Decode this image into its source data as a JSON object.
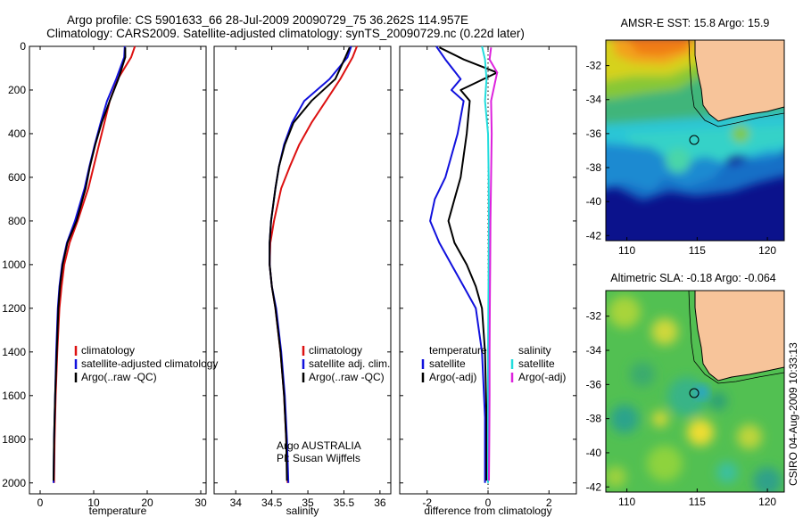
{
  "header": {
    "line1": "Argo profile: CS 5901633_66 28-Jul-2009 20090729_75 36.262S 114.957E",
    "line2": "Climatology: CARS2009. Satellite-adjusted climatology: synTS_20090729.nc (0.22d later)"
  },
  "side_label": "CSIRO 04-Aug-2009 10:33:13",
  "colors": {
    "climatology": "#dd1111",
    "satellite": "#1111dd",
    "argo": "#000000",
    "satellite_salinity": "#22dddd",
    "argo_adj_salinity": "#dd22dd",
    "land": "#f7c49a",
    "ocean_deep": "#0b128c"
  },
  "chart_data": [
    {
      "type": "line",
      "xlabel": "temperature",
      "ylabel": "",
      "xlim": [
        -2,
        31
      ],
      "ylim": [
        0,
        2050
      ],
      "xticks": [
        0,
        10,
        20,
        30
      ],
      "yticks": [
        0,
        200,
        400,
        600,
        800,
        1000,
        1200,
        1400,
        1600,
        1800,
        2000
      ],
      "legend": {
        "placement": "lower-right",
        "entries": [
          "climatology",
          "satellite-adjusted climatology",
          "Argo(..raw -QC)"
        ]
      },
      "series": [
        {
          "name": "climatology",
          "color": "#dd1111",
          "x": [
            17.7,
            17,
            14.5,
            13,
            12,
            11,
            10,
            9,
            7,
            5.5,
            4.5,
            4,
            3.6,
            3.2,
            2.9,
            2.7,
            2.6
          ],
          "y": [
            0,
            50,
            150,
            250,
            350,
            450,
            550,
            650,
            800,
            900,
            1000,
            1100,
            1200,
            1400,
            1600,
            1800,
            2000
          ]
        },
        {
          "name": "satellite-adjusted climatology",
          "color": "#1111dd",
          "x": [
            15.8,
            15.7,
            14.2,
            12.5,
            11.3,
            10.2,
            9.2,
            8.3,
            6.5,
            5,
            4.1,
            3.6,
            3.3,
            3,
            2.8,
            2.6,
            2.5
          ],
          "y": [
            0,
            50,
            150,
            250,
            350,
            450,
            550,
            650,
            800,
            900,
            1000,
            1100,
            1200,
            1400,
            1600,
            1800,
            2000
          ]
        },
        {
          "name": "Argo(..raw -QC)",
          "color": "#000000",
          "x": [
            15.9,
            15.9,
            14.6,
            13,
            11.5,
            10.3,
            9.3,
            8.5,
            6.8,
            5.1,
            4.2,
            3.7,
            3.4,
            3.1,
            2.8,
            2.6,
            2.5
          ],
          "y": [
            5,
            50,
            150,
            250,
            350,
            450,
            550,
            650,
            800,
            900,
            1000,
            1100,
            1200,
            1400,
            1600,
            1800,
            1990
          ]
        }
      ]
    },
    {
      "type": "line",
      "xlabel": "salinity",
      "xlim": [
        33.7,
        36.15
      ],
      "ylim": [
        0,
        2050
      ],
      "xticks": [
        34,
        34.5,
        35,
        35.5,
        36
      ],
      "legend": {
        "placement": "lower-right",
        "entries": [
          "climatology",
          "satellite adj. clim.",
          "Argo(..raw -QC)"
        ]
      },
      "annotations": [
        "Argo AUSTRALIA",
        "PI: Susan Wijffels"
      ],
      "series": [
        {
          "name": "climatology",
          "color": "#dd1111",
          "x": [
            35.68,
            35.62,
            35.45,
            35.25,
            35.05,
            34.88,
            34.75,
            34.63,
            34.53,
            34.48,
            34.47,
            34.5,
            34.55,
            34.62,
            34.67,
            34.7,
            34.72
          ],
          "y": [
            0,
            50,
            150,
            250,
            350,
            450,
            550,
            650,
            800,
            900,
            1000,
            1100,
            1200,
            1400,
            1600,
            1800,
            2000
          ]
        },
        {
          "name": "satellite adj. clim.",
          "color": "#1111dd",
          "x": [
            35.6,
            35.55,
            35.3,
            34.95,
            34.78,
            34.67,
            34.6,
            34.55,
            34.49,
            34.47,
            34.47,
            34.5,
            34.56,
            34.63,
            34.68,
            34.71,
            34.73
          ],
          "y": [
            0,
            50,
            150,
            250,
            350,
            450,
            550,
            650,
            800,
            900,
            1000,
            1100,
            1200,
            1400,
            1600,
            1800,
            2000
          ]
        },
        {
          "name": "Argo(..raw -QC)",
          "color": "#000000",
          "x": [
            35.58,
            35.52,
            35.38,
            35.05,
            34.8,
            34.68,
            34.6,
            34.55,
            34.49,
            34.47,
            34.47,
            34.5,
            34.55,
            34.62,
            34.67,
            34.7,
            34.71
          ],
          "y": [
            5,
            50,
            150,
            250,
            350,
            450,
            550,
            650,
            800,
            900,
            1000,
            1100,
            1200,
            1400,
            1600,
            1800,
            1990
          ]
        }
      ]
    },
    {
      "type": "line",
      "xlabel": "difference from climatology",
      "xlim": [
        -2.9,
        2.9
      ],
      "ylim": [
        0,
        2050
      ],
      "xticks": [
        -2,
        0,
        2
      ],
      "zero_line": "dotted",
      "legend": {
        "placement": "lower-center",
        "groups": [
          {
            "title": "temperature",
            "entries": [
              "satellite",
              "Argo(-adj)"
            ]
          },
          {
            "title": "salinity",
            "entries": [
              "satellite",
              "Argo(-adj)"
            ]
          }
        ]
      },
      "series": [
        {
          "name": "satellite",
          "group": "temperature",
          "color": "#1111dd",
          "x": [
            -1.7,
            -1.4,
            -0.9,
            -1.2,
            -0.8,
            -1.0,
            -1.4,
            -1.75,
            -1.9,
            -1.6,
            -1.2,
            -0.8,
            -0.4,
            -0.2,
            -0.1,
            -0.1
          ],
          "y": [
            0,
            60,
            150,
            200,
            250,
            400,
            600,
            700,
            800,
            900,
            1000,
            1100,
            1200,
            1400,
            1700,
            2000
          ]
        },
        {
          "name": "Argo(-adj)",
          "group": "temperature",
          "color": "#000000",
          "x": [
            -1.6,
            -0.8,
            0.3,
            -0.9,
            -0.6,
            -0.7,
            -0.9,
            -1.1,
            -1.3,
            -1.1,
            -0.7,
            -0.4,
            -0.2,
            -0.1,
            -0.05,
            -0.05
          ],
          "y": [
            5,
            60,
            120,
            200,
            250,
            400,
            600,
            700,
            800,
            900,
            1000,
            1100,
            1200,
            1400,
            1700,
            1990
          ]
        },
        {
          "name": "satellite",
          "group": "salinity",
          "color": "#22dddd",
          "x": [
            -0.2,
            -0.1,
            -0.05,
            -0.1,
            0,
            0.02,
            0.03,
            0.02,
            0.01,
            0.0,
            0.0,
            0.0,
            0.0
          ],
          "y": [
            0,
            60,
            150,
            250,
            400,
            600,
            800,
            1000,
            1200,
            1400,
            1600,
            1800,
            2000
          ]
        },
        {
          "name": "Argo(-adj)",
          "group": "salinity",
          "color": "#dd22dd",
          "x": [
            0.1,
            0.05,
            0.3,
            0.1,
            0.12,
            0.1,
            0.08,
            0.07,
            0.06,
            0.05,
            0.05,
            0.04,
            0.03
          ],
          "y": [
            5,
            60,
            120,
            250,
            400,
            600,
            800,
            1000,
            1200,
            1400,
            1600,
            1800,
            1990
          ]
        }
      ]
    },
    {
      "type": "heatmap",
      "title": "AMSR-E SST: 15.8 Argo: 15.9",
      "xlim": [
        108.5,
        121.2
      ],
      "ylim": [
        -42.3,
        -30.5
      ],
      "xticks": [
        110,
        115,
        120
      ],
      "yticks": [
        -32,
        -34,
        -36,
        -38,
        -40,
        -42
      ],
      "argo_position": {
        "lon": 114.957,
        "lat": -36.262
      }
    },
    {
      "type": "heatmap",
      "title": "Altimetric SLA: -0.18 Argo: -0.064",
      "xlim": [
        108.5,
        121.2
      ],
      "ylim": [
        -42.3,
        -30.5
      ],
      "xticks": [
        110,
        115,
        120
      ],
      "yticks": [
        -32,
        -34,
        -36,
        -38,
        -40,
        -42
      ],
      "argo_position": {
        "lon": 114.957,
        "lat": -36.262
      }
    }
  ]
}
